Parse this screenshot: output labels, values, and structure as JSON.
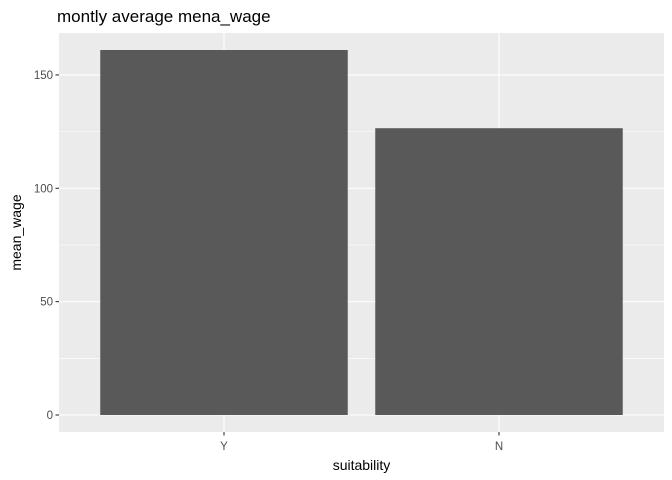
{
  "chart_data": {
    "type": "bar",
    "title": "montly average mena_wage",
    "xlabel": "suitability",
    "ylabel": "mean_wage",
    "categories": [
      "Y",
      "N"
    ],
    "values": [
      161,
      126.5
    ],
    "ylim": [
      -7.5,
      168.5
    ],
    "yticks": [
      0,
      50,
      100,
      150
    ],
    "ytick_labels": [
      "0",
      "50",
      "100",
      "150"
    ],
    "grid": true,
    "panel_color": "#ebebeb",
    "grid_color": "#ffffff",
    "bar_color": "#595959",
    "tick_color": "#333333"
  }
}
